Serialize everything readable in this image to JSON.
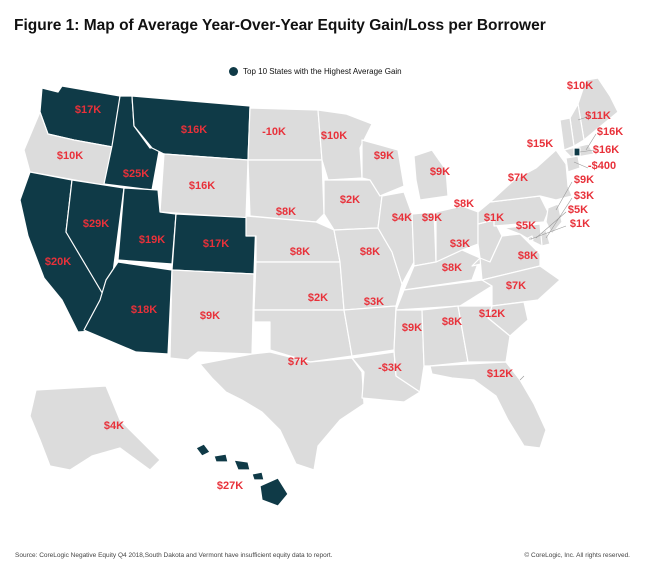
{
  "title": "Figure 1: Map of Average Year-Over-Year Equity Gain/Loss per Borrower",
  "legend": {
    "label": "Top 10 States with the Highest Average Gain",
    "color": "#0f3a47"
  },
  "footer": {
    "source": "Source: CoreLogic Negative Equity Q4 2018,South Dakota and Vermont have insufficient equity data to report.",
    "copyright": "© CoreLogic, Inc. All rights reserved."
  },
  "colors": {
    "top10": "#0f3a47",
    "other": "#dcdcdc",
    "label": "#e8313a"
  },
  "states": [
    {
      "id": "WA",
      "value": "$17K",
      "top10": true
    },
    {
      "id": "OR",
      "value": "$10K",
      "top10": false
    },
    {
      "id": "CA",
      "value": "$20K",
      "top10": true
    },
    {
      "id": "ID",
      "value": "$25K",
      "top10": true
    },
    {
      "id": "NV",
      "value": "$29K",
      "top10": true
    },
    {
      "id": "MT",
      "value": "$16K",
      "top10": true
    },
    {
      "id": "WY",
      "value": "$16K",
      "top10": false
    },
    {
      "id": "UT",
      "value": "$19K",
      "top10": true
    },
    {
      "id": "CO",
      "value": "$17K",
      "top10": true
    },
    {
      "id": "AZ",
      "value": "$18K",
      "top10": true
    },
    {
      "id": "NM",
      "value": "$9K",
      "top10": false
    },
    {
      "id": "ND",
      "value": "-10K",
      "top10": false
    },
    {
      "id": "SD",
      "value": "",
      "top10": false
    },
    {
      "id": "NE",
      "value": "$8K",
      "top10": false
    },
    {
      "id": "KS",
      "value": "$8K",
      "top10": false
    },
    {
      "id": "OK",
      "value": "$2K",
      "top10": false
    },
    {
      "id": "TX",
      "value": "$7K",
      "top10": false
    },
    {
      "id": "MN",
      "value": "$10K",
      "top10": false
    },
    {
      "id": "IA",
      "value": "$2K",
      "top10": false
    },
    {
      "id": "MO",
      "value": "$8K",
      "top10": false
    },
    {
      "id": "AR",
      "value": "$3K",
      "top10": false
    },
    {
      "id": "LA",
      "value": "-$3K",
      "top10": false
    },
    {
      "id": "WI",
      "value": "$9K",
      "top10": false
    },
    {
      "id": "IL",
      "value": "$4K",
      "top10": false
    },
    {
      "id": "MI",
      "value": "$9K",
      "top10": false
    },
    {
      "id": "IN",
      "value": "$9K",
      "top10": false
    },
    {
      "id": "KY",
      "value": "$3K",
      "top10": false
    },
    {
      "id": "TN",
      "value": "$8K",
      "top10": false
    },
    {
      "id": "MS",
      "value": "$9K",
      "top10": false
    },
    {
      "id": "AL",
      "value": "$8K",
      "top10": false
    },
    {
      "id": "OH",
      "value": "$8K",
      "top10": false
    },
    {
      "id": "WV",
      "value": "$1K",
      "top10": false
    },
    {
      "id": "VA",
      "value": "$5K",
      "top10": false
    },
    {
      "id": "NC",
      "value": "$8K",
      "top10": false
    },
    {
      "id": "SC",
      "value": "$7K",
      "top10": false
    },
    {
      "id": "GA",
      "value": "$12K",
      "top10": false
    },
    {
      "id": "FL",
      "value": "$12K",
      "top10": false
    },
    {
      "id": "PA",
      "value": "$7K",
      "top10": false
    },
    {
      "id": "NY",
      "value": "$15K",
      "top10": false
    },
    {
      "id": "ME",
      "value": "$10K",
      "top10": false
    },
    {
      "id": "NH",
      "value": "$11K",
      "top10": false
    },
    {
      "id": "VT",
      "value": "",
      "top10": false
    },
    {
      "id": "MA",
      "value": "$16K",
      "top10": false
    },
    {
      "id": "RI",
      "value": "$16K",
      "top10": true
    },
    {
      "id": "CT",
      "value": "-$400",
      "top10": false
    },
    {
      "id": "NJ",
      "value": "$9K",
      "top10": false
    },
    {
      "id": "DE",
      "value": "$3K",
      "top10": false
    },
    {
      "id": "MD",
      "value": "$5K",
      "top10": false
    },
    {
      "id": "DC",
      "value": "$1K",
      "top10": false
    },
    {
      "id": "AK",
      "value": "$4K",
      "top10": false
    },
    {
      "id": "HI",
      "value": "$27K",
      "top10": true
    }
  ]
}
